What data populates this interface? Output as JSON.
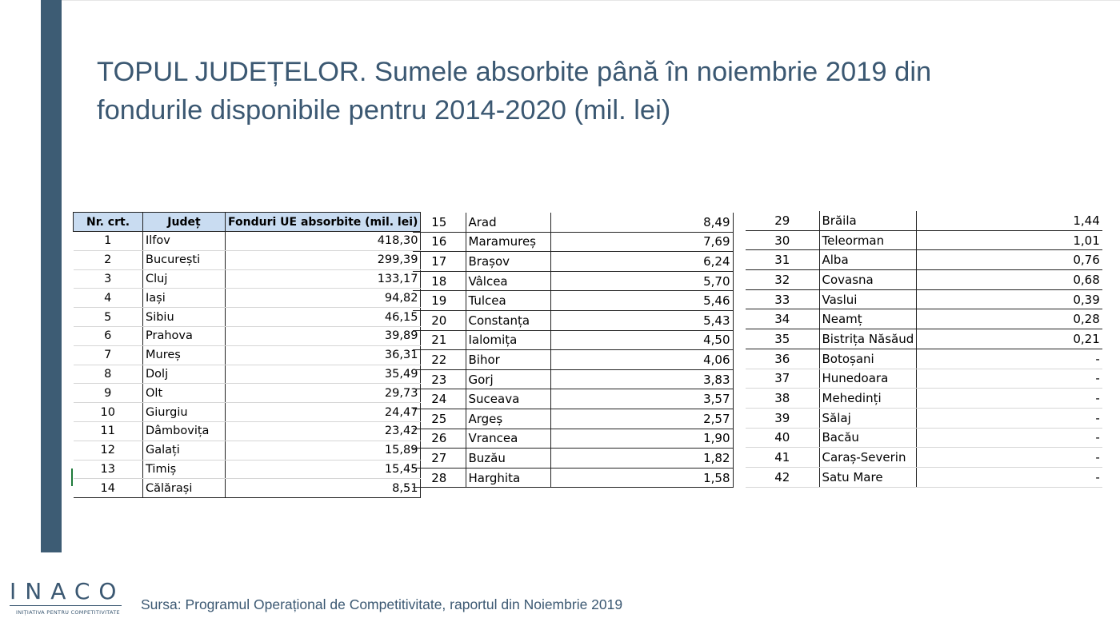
{
  "title": {
    "line1": "TOPUL JUDEȚELOR. Sumele absorbite până în noiembrie 2019 din",
    "line2": "fondurile disponibile pentru 2014-2020 (mil. lei)"
  },
  "table": {
    "headers": [
      "Nr. crt.",
      "Județ",
      "Fonduri UE absorbite (mil. lei)"
    ],
    "part1": [
      {
        "nr": "1",
        "judet": "Ilfov",
        "valoare": "418,30"
      },
      {
        "nr": "2",
        "judet": "București",
        "valoare": "299,39"
      },
      {
        "nr": "3",
        "judet": "Cluj",
        "valoare": "133,17"
      },
      {
        "nr": "4",
        "judet": "Iași",
        "valoare": "94,82"
      },
      {
        "nr": "5",
        "judet": "Sibiu",
        "valoare": "46,15"
      },
      {
        "nr": "6",
        "judet": "Prahova",
        "valoare": "39,89"
      },
      {
        "nr": "7",
        "judet": "Mureș",
        "valoare": "36,31"
      },
      {
        "nr": "8",
        "judet": "Dolj",
        "valoare": "35,49"
      },
      {
        "nr": "9",
        "judet": "Olt",
        "valoare": "29,73"
      },
      {
        "nr": "10",
        "judet": "Giurgiu",
        "valoare": "24,47"
      },
      {
        "nr": "11",
        "judet": "Dâmbovița",
        "valoare": "23,42"
      },
      {
        "nr": "12",
        "judet": "Galați",
        "valoare": "15,89"
      },
      {
        "nr": "13",
        "judet": "Timiș",
        "valoare": "15,45"
      },
      {
        "nr": "14",
        "judet": "Călărași",
        "valoare": "8,51"
      }
    ],
    "part2": [
      {
        "nr": "15",
        "judet": "Arad",
        "valoare": "8,49"
      },
      {
        "nr": "16",
        "judet": "Maramureș",
        "valoare": "7,69"
      },
      {
        "nr": "17",
        "judet": "Brașov",
        "valoare": "6,24"
      },
      {
        "nr": "18",
        "judet": "Vâlcea",
        "valoare": "5,70"
      },
      {
        "nr": "19",
        "judet": "Tulcea",
        "valoare": "5,46"
      },
      {
        "nr": "20",
        "judet": "Constanța",
        "valoare": "5,43"
      },
      {
        "nr": "21",
        "judet": "Ialomița",
        "valoare": "4,50"
      },
      {
        "nr": "22",
        "judet": "Bihor",
        "valoare": "4,06"
      },
      {
        "nr": "23",
        "judet": "Gorj",
        "valoare": "3,83"
      },
      {
        "nr": "24",
        "judet": "Suceava",
        "valoare": "3,57"
      },
      {
        "nr": "25",
        "judet": "Argeș",
        "valoare": "2,57"
      },
      {
        "nr": "26",
        "judet": "Vrancea",
        "valoare": "1,90"
      },
      {
        "nr": "27",
        "judet": "Buzău",
        "valoare": "1,82"
      },
      {
        "nr": "28",
        "judet": "Harghita",
        "valoare": "1,58"
      }
    ],
    "part3": [
      {
        "nr": "29",
        "judet": "Brăila",
        "valoare": "1,44"
      },
      {
        "nr": "30",
        "judet": "Teleorman",
        "valoare": "1,01"
      },
      {
        "nr": "31",
        "judet": "Alba",
        "valoare": "0,76"
      },
      {
        "nr": "32",
        "judet": "Covasna",
        "valoare": "0,68"
      },
      {
        "nr": "33",
        "judet": "Vaslui",
        "valoare": "0,39"
      },
      {
        "nr": "34",
        "judet": "Neamț",
        "valoare": "0,28"
      },
      {
        "nr": "35",
        "judet": "Bistrița Năsăud",
        "valoare": "0,21"
      },
      {
        "nr": "36",
        "judet": "Botoșani",
        "valoare": "-"
      },
      {
        "nr": "37",
        "judet": "Hunedoara",
        "valoare": "-"
      },
      {
        "nr": "38",
        "judet": "Mehedinți",
        "valoare": "-"
      },
      {
        "nr": "39",
        "judet": "Sălaj",
        "valoare": "-"
      },
      {
        "nr": "40",
        "judet": "Bacău",
        "valoare": "-"
      },
      {
        "nr": "41",
        "judet": "Caraș-Severin",
        "valoare": "-"
      },
      {
        "nr": "42",
        "judet": "Satu Mare",
        "valoare": "-"
      }
    ]
  },
  "logo": {
    "name": "INACO",
    "tagline": "INIȚIATIVA PENTRU COMPETITIVITATE"
  },
  "source": "Sursa: Programul Operațional de Competitivitate, raportul din Noiembrie 2019",
  "colors": {
    "accent": "#3d5c74",
    "title_text": "#3b5872",
    "header_fill": "#c9dcf1"
  }
}
